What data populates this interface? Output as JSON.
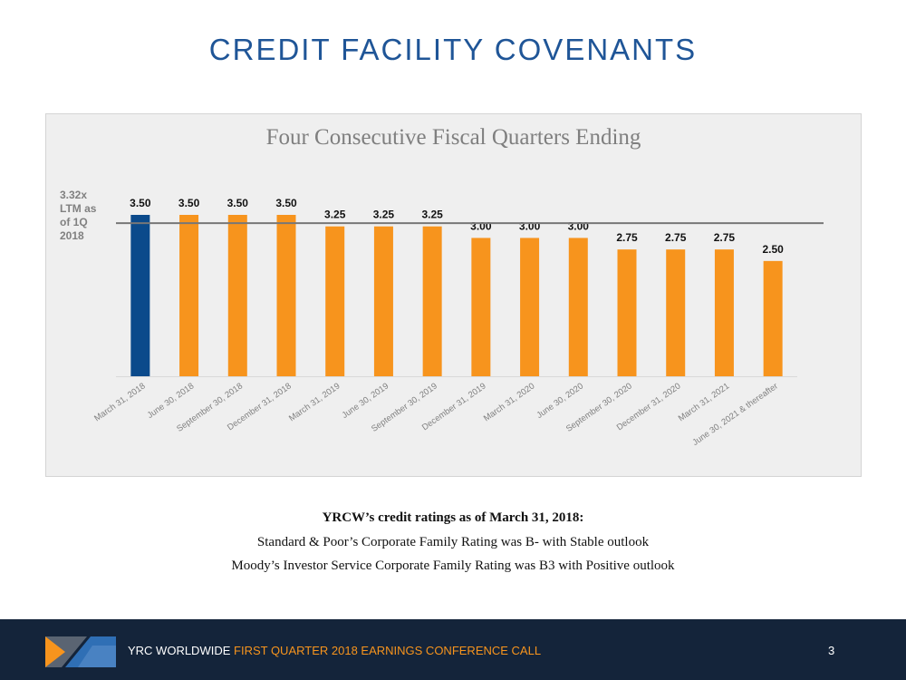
{
  "slide": {
    "title": "CREDIT FACILITY COVENANTS"
  },
  "chart_data": {
    "type": "bar",
    "title": "Four Consecutive Fiscal Quarters Ending",
    "categories": [
      "March 31, 2018",
      "June 30, 2018",
      "September 30, 2018",
      "December 31, 2018",
      "March 31, 2019",
      "June 30, 2019",
      "September 30, 2019",
      "December 31, 2019",
      "March 31, 2020",
      "June 30, 2020",
      "September 30, 2020",
      "December 31, 2020",
      "March 31, 2021",
      "June 30, 2021 & thereafter"
    ],
    "values": [
      3.5,
      3.5,
      3.5,
      3.5,
      3.25,
      3.25,
      3.25,
      3.0,
      3.0,
      3.0,
      2.75,
      2.75,
      2.75,
      2.5
    ],
    "value_labels": [
      "3.50",
      "3.50",
      "3.50",
      "3.50",
      "3.25",
      "3.25",
      "3.25",
      "3.00",
      "3.00",
      "3.00",
      "2.75",
      "2.75",
      "2.75",
      "2.50"
    ],
    "bar_colors": [
      "#0b4a8b",
      "#f7941d",
      "#f7941d",
      "#f7941d",
      "#f7941d",
      "#f7941d",
      "#f7941d",
      "#f7941d",
      "#f7941d",
      "#f7941d",
      "#f7941d",
      "#f7941d",
      "#f7941d",
      "#f7941d"
    ],
    "reference_line": {
      "value": 3.32,
      "label_lines": [
        "3.32x",
        "LTM as",
        "of 1Q",
        "2018"
      ],
      "color": "#777777"
    },
    "ylim": [
      0,
      3.5
    ],
    "grid": false,
    "legend": "none"
  },
  "notes": {
    "heading": "YRCW’s credit ratings as of March 31, 2018:",
    "line1": "Standard & Poor’s Corporate Family Rating was B- with Stable outlook",
    "line2": "Moody’s Investor Service Corporate Family Rating was B3 with Positive outlook"
  },
  "footer": {
    "company": "YRC WORLDWIDE",
    "event": "FIRST QUARTER 2018 EARNINGS CONFERENCE CALL",
    "page_number": "3"
  },
  "colors": {
    "title_blue": "#1f5597",
    "accent_orange": "#f7941d",
    "highlight_blue": "#0b4a8b",
    "footer_background": "#14243a"
  }
}
